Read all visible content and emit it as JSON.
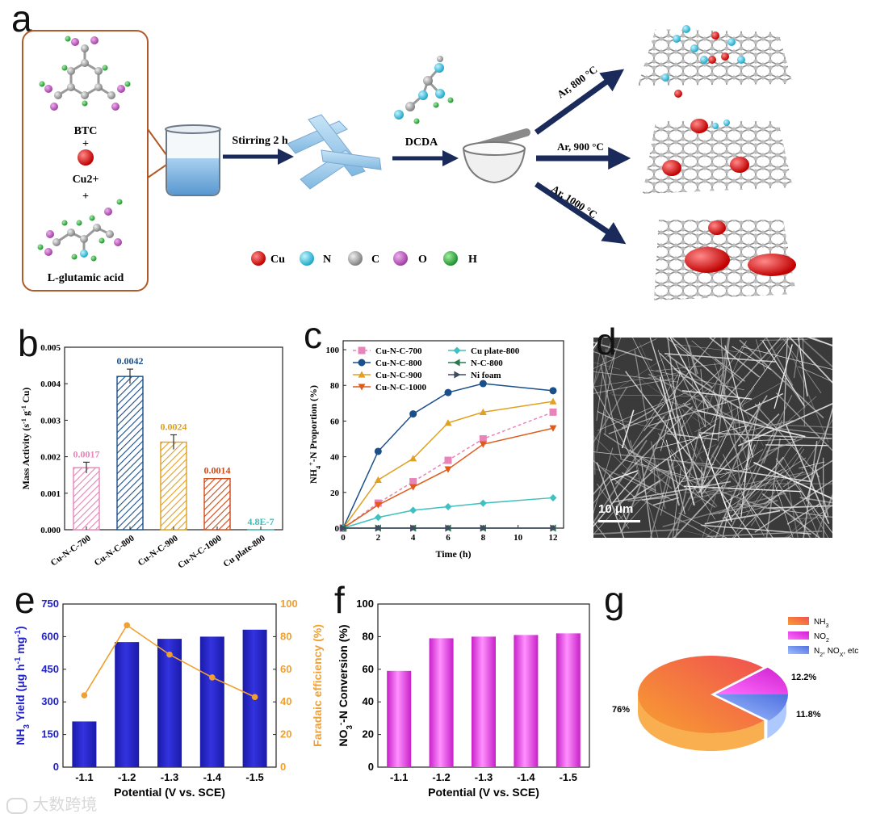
{
  "panel_labels": [
    "a",
    "b",
    "c",
    "d",
    "e",
    "f",
    "g"
  ],
  "scheme": {
    "precursors": [
      "BTC",
      "+",
      "Cu2+",
      "+",
      "L-glutamic acid"
    ],
    "steps": [
      "Stirring 2 h",
      "DCDA"
    ],
    "conditions": [
      "Ar, 800 °C",
      "Ar, 900 °C",
      "Ar, 1000 °C"
    ],
    "atom_legend": [
      {
        "symbol": "Cu",
        "color": "#e02020"
      },
      {
        "symbol": "N",
        "color": "#40c8e0"
      },
      {
        "symbol": "C",
        "color": "#a8a8a8"
      },
      {
        "symbol": "O",
        "color": "#c060c0"
      },
      {
        "symbol": "H",
        "color": "#30b040"
      }
    ]
  },
  "micrograph": {
    "scale_bar": "10 μm"
  },
  "watermark": "大数跨境",
  "chart_data": [
    {
      "id": "b",
      "type": "bar",
      "categories": [
        "Cu-N-C-700",
        "Cu-N-C-800",
        "Cu-N-C-900",
        "Cu-N-C-1000",
        "Cu plate-800"
      ],
      "values": [
        0.0017,
        0.0042,
        0.0024,
        0.0014,
        4.8e-07
      ],
      "errors": [
        0.00015,
        0.0002,
        0.0002,
        0,
        0
      ],
      "data_labels": [
        "0.0017",
        "0.0042",
        "0.0024",
        "0.0014",
        "4.8E-7"
      ],
      "colors": [
        "#e884b8",
        "#1a4f8a",
        "#e0a020",
        "#d04a18",
        "#40b8b8"
      ],
      "ylabel": "Mass Activity (s-1 g-1 Cu)",
      "ylim": [
        0,
        0.005
      ],
      "yticks": [
        "0.000",
        "0.001",
        "0.002",
        "0.003",
        "0.004",
        "0.005"
      ],
      "pattern": "hatched"
    },
    {
      "id": "c",
      "type": "line",
      "x": [
        0,
        2,
        4,
        6,
        8,
        12
      ],
      "xticks": [
        "0",
        "2",
        "4",
        "6",
        "8",
        "10",
        "12"
      ],
      "xlim": [
        0,
        12.6
      ],
      "yticks": [
        "0",
        "20",
        "40",
        "60",
        "80",
        "100"
      ],
      "ylim": [
        0,
        105
      ],
      "xlabel": "Time (h)",
      "ylabel": "NH4+-N Proportion (%)",
      "series": [
        {
          "name": "Cu-N-C-700",
          "color": "#e884b8",
          "marker": "square",
          "dash": true,
          "values": [
            0,
            14,
            26,
            38,
            50,
            65
          ]
        },
        {
          "name": "Cu-N-C-800",
          "color": "#1a4f8a",
          "marker": "circle",
          "dash": false,
          "values": [
            0,
            43,
            64,
            76,
            81,
            77
          ]
        },
        {
          "name": "Cu-N-C-900",
          "color": "#e0a020",
          "marker": "triangle-up",
          "dash": false,
          "values": [
            0,
            27,
            39,
            59,
            65,
            71
          ]
        },
        {
          "name": "Cu-N-C-1000",
          "color": "#e05a1a",
          "marker": "triangle-down",
          "dash": false,
          "values": [
            0,
            13,
            23,
            33,
            47,
            56
          ]
        },
        {
          "name": "Cu plate-800",
          "color": "#40c0c0",
          "marker": "diamond",
          "dash": false,
          "values": [
            0,
            6,
            10,
            12,
            14,
            17
          ]
        },
        {
          "name": "N-C-800",
          "color": "#2a7a50",
          "marker": "triangle-left",
          "dash": false,
          "values": [
            0,
            0,
            0,
            0,
            0,
            0
          ]
        },
        {
          "name": "Ni foam",
          "color": "#404a60",
          "marker": "triangle-right",
          "dash": false,
          "values": [
            0,
            0,
            0,
            0,
            0,
            0
          ]
        }
      ]
    },
    {
      "id": "e",
      "type": "bar",
      "categories": [
        "-1.1",
        "-1.2",
        "-1.3",
        "-1.4",
        "-1.5"
      ],
      "values": [
        210,
        575,
        590,
        600,
        632
      ],
      "ylim": [
        0,
        750
      ],
      "yticks": [
        "0",
        "150",
        "300",
        "450",
        "600",
        "750"
      ],
      "ylabel": "NH3 Yield (μg h-1 mg-1)",
      "xlabel": "Potential (V vs. SCE)",
      "bar_color": "#3333e0",
      "secondary": {
        "type": "line",
        "values": [
          44,
          87,
          69,
          55,
          43
        ],
        "ylim": [
          0,
          100
        ],
        "yticks": [
          "0",
          "20",
          "40",
          "60",
          "80",
          "100"
        ],
        "ylabel": "Faradaic efficiency (%)",
        "color": "#f0a030"
      }
    },
    {
      "id": "f",
      "type": "bar",
      "categories": [
        "-1.1",
        "-1.2",
        "-1.3",
        "-1.4",
        "-1.5"
      ],
      "values": [
        59,
        79,
        80,
        81,
        82
      ],
      "ylim": [
        0,
        100
      ],
      "yticks": [
        "0",
        "20",
        "40",
        "60",
        "80",
        "100"
      ],
      "ylabel": "NO3--N Conversion (%)",
      "xlabel": "Potential (V vs. SCE)",
      "bar_color": "#ee44ee"
    },
    {
      "id": "g",
      "type": "pie",
      "labels": [
        "NH3",
        "NO2",
        "N2, NOx, etc"
      ],
      "values": [
        76,
        12.2,
        11.8
      ],
      "value_labels": [
        "76%",
        "12.2%",
        "11.8%"
      ],
      "colors": [
        "#f07040",
        "#e040e0",
        "#6080f0"
      ]
    }
  ]
}
